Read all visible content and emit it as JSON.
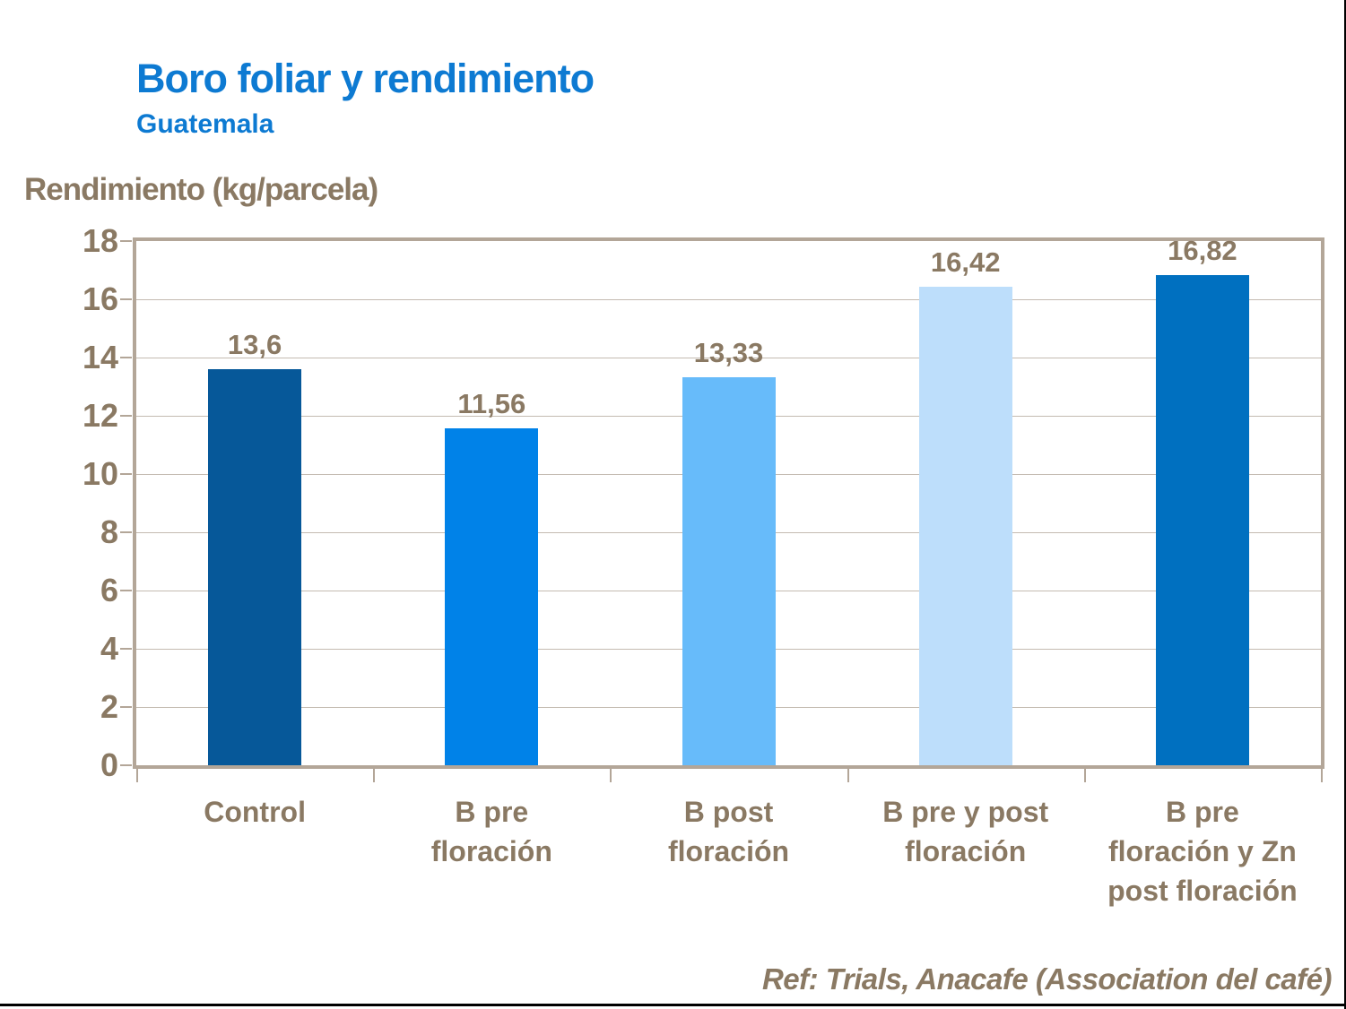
{
  "page": {
    "title": "Boro foliar y rendimiento",
    "subtitle": "Guatemala",
    "footer": "Ref: Trials, Anacafe (Association del café)"
  },
  "chart_data": {
    "type": "bar",
    "title": "Boro foliar y rendimiento",
    "subtitle": "Guatemala",
    "ylabel": "Rendimiento (kg/parcela)",
    "xlabel": "",
    "categories": [
      "Control",
      "B pre\nfloración",
      "B post\nfloración",
      "B pre y post\nfloración",
      "B pre\nfloración y Zn\npost floración"
    ],
    "values": [
      13.6,
      11.56,
      13.33,
      16.42,
      16.82
    ],
    "value_labels": [
      "13,6",
      "11,56",
      "13,33",
      "16,42",
      "16,82"
    ],
    "bar_colors": [
      "#065899",
      "#0082e8",
      "#67bbfa",
      "#bddefb",
      "#0070c0"
    ],
    "ylim": [
      0,
      18
    ],
    "yticks": [
      0,
      2,
      4,
      6,
      8,
      10,
      12,
      14,
      16,
      18
    ],
    "grid": true,
    "legend": false,
    "decimal_separator": ",",
    "footnote": "Ref: Trials, Anacafe (Association del café)"
  },
  "colors": {
    "title_blue": "#0d7ad2",
    "text_brown": "#8a7963",
    "gridline": "#c4bbb1",
    "frame_border": "#b3a698",
    "background": "#ffffff",
    "page_border": "#000000"
  }
}
